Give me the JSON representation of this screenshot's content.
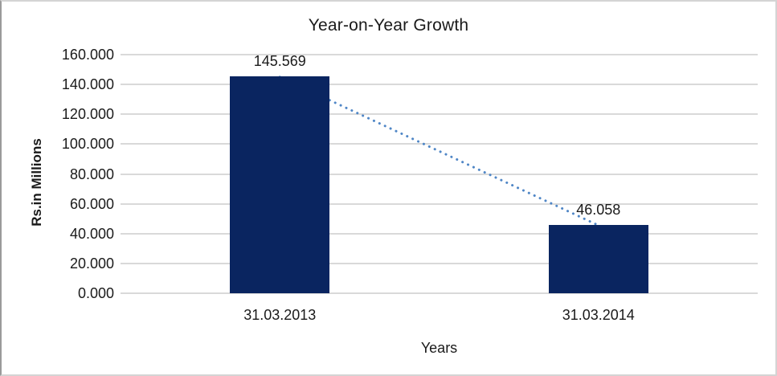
{
  "chart_data": {
    "type": "bar",
    "title": "Year-on-Year Growth",
    "xlabel": "Years",
    "ylabel": "Rs.in Millions",
    "categories": [
      "31.03.2013",
      "31.03.2014"
    ],
    "series": [
      {
        "name": "Year-on-Year Growth",
        "values": [
          145.569,
          46.058
        ]
      }
    ],
    "value_labels": [
      "145.569",
      "46.058"
    ],
    "ylim": [
      0,
      160
    ],
    "ytick_step": 20,
    "ytick_labels": [
      "0.000",
      "20.000",
      "40.000",
      "60.000",
      "80.000",
      "100.000",
      "120.000",
      "140.000",
      "160.000"
    ],
    "grid": true,
    "legend": "none",
    "trendline": {
      "type": "linear-dotted",
      "connects": "bar-tops"
    },
    "colors": {
      "bar": "#0a2560",
      "trendline": "#4f86c6",
      "gridline": "#d9d9d9",
      "text": "#1a1a1a",
      "frame_border": "#d4d4d4"
    }
  }
}
